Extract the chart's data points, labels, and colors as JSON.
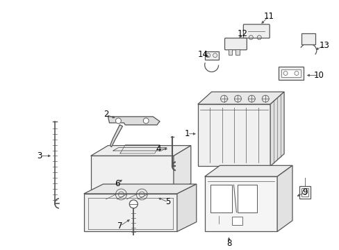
{
  "background_color": "#ffffff",
  "line_color": "#555555",
  "label_color": "#000000",
  "fig_width": 4.89,
  "fig_height": 3.6,
  "dpi": 100
}
